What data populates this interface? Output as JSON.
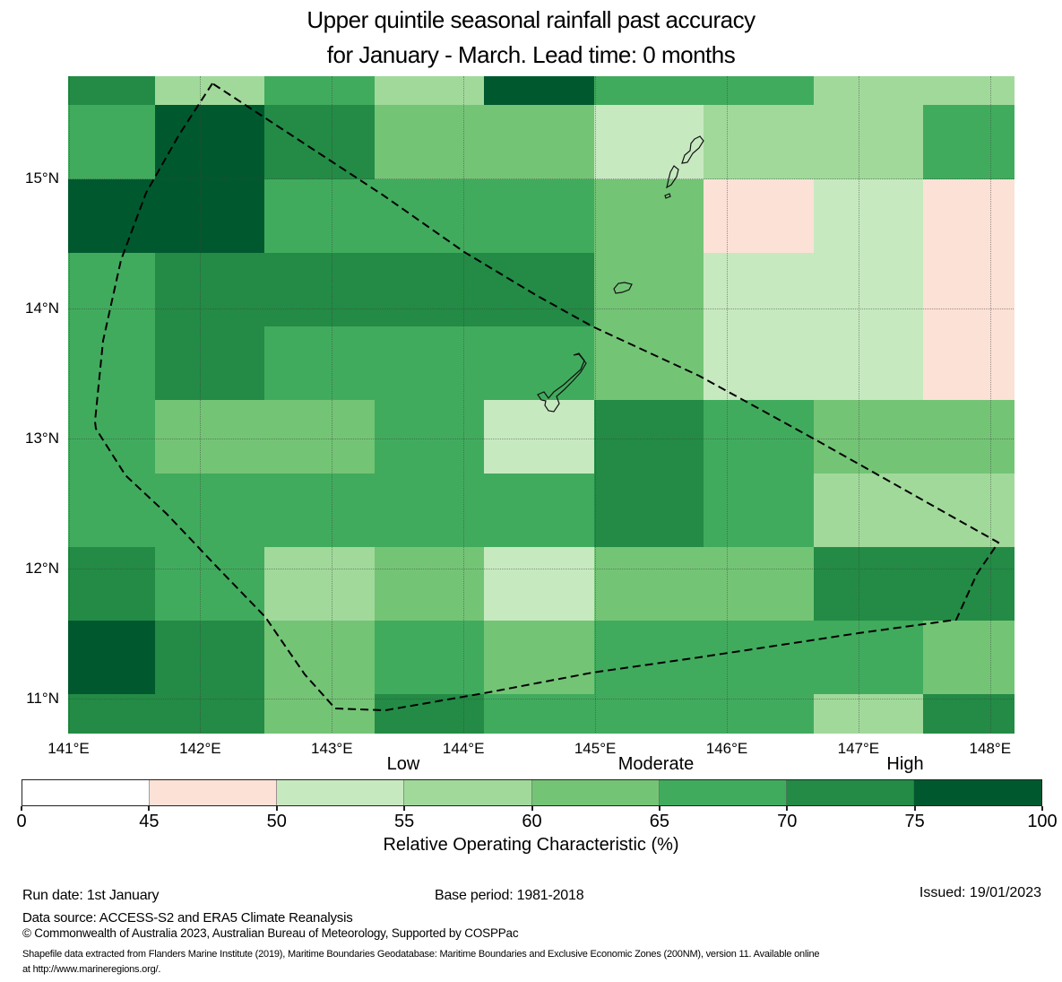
{
  "title": {
    "line1": "Upper quintile seasonal rainfall past accuracy",
    "line2": "for January - March. Lead time: 0 months"
  },
  "axes": {
    "x_ticks": [
      "141°E",
      "142°E",
      "143°E",
      "144°E",
      "145°E",
      "146°E",
      "147°E",
      "148°E"
    ],
    "y_ticks": [
      "15°N",
      "14°N",
      "13°N",
      "12°N",
      "11°N"
    ]
  },
  "legend": {
    "categories": [
      "Low",
      "Moderate",
      "High"
    ],
    "tick_labels": [
      "0",
      "45",
      "50",
      "55",
      "60",
      "65",
      "70",
      "75",
      "100"
    ],
    "caption": "Relative Operating Characteristic (%)",
    "bins": [
      {
        "range": "0-45",
        "color": "#ffffff"
      },
      {
        "range": "45-50",
        "color": "#fbe1d6"
      },
      {
        "range": "50-55",
        "color": "#c7e9c0"
      },
      {
        "range": "55-60",
        "color": "#a1d99b"
      },
      {
        "range": "60-65",
        "color": "#74c476"
      },
      {
        "range": "65-70",
        "color": "#41ab5d"
      },
      {
        "range": "70-75",
        "color": "#238b45"
      },
      {
        "range": "75-100",
        "color": "#00592e"
      }
    ]
  },
  "footer": {
    "run_date": "Run date: 1st January",
    "base_period": "Base period: 1981-2018",
    "issued": "Issued: 19/01/2023",
    "data_source": "Data source: ACCESS-S2 and ERA5 Climate Reanalysis",
    "copyright": "© Commonwealth of Australia 2023, Australian Bureau of Meteorology, Supported by COSPPac",
    "shapefile_line1": "Shapefile data extracted from Flanders Marine Institute (2019), Maritime Boundaries Geodatabase: Maritime Boundaries and Exclusive Economic Zones (200NM), version 11. Available online",
    "shapefile_line2": "at http://www.marineregions.org/."
  },
  "chart_data": {
    "type": "heatmap",
    "title": "Upper quintile seasonal rainfall past accuracy for January - March. Lead time: 0 months",
    "value_label": "Relative Operating Characteristic (%)",
    "value_bins": [
      "0-45",
      "45-50",
      "50-55",
      "55-60",
      "60-65",
      "65-70",
      "70-75",
      "75-100"
    ],
    "bin_category_labels": {
      "Low": "50-60",
      "Moderate": "60-70",
      "High": "70-100"
    },
    "lon_edges": [
      141.0,
      141.66,
      142.49,
      143.33,
      144.16,
      144.99,
      145.83,
      146.66,
      147.49,
      148.18
    ],
    "lat_edges": [
      15.79,
      15.57,
      15.0,
      14.43,
      13.86,
      13.3,
      12.73,
      12.16,
      11.6,
      11.03,
      10.74
    ],
    "grid_roc_percent": [
      [
        "70-75",
        "55-60",
        "65-70",
        "55-60",
        "75-100",
        "65-70",
        "65-70",
        "55-60",
        "55-60"
      ],
      [
        "65-70",
        "75-100",
        "70-75",
        "60-65",
        "60-65",
        "50-55",
        "55-60",
        "55-60",
        "65-70"
      ],
      [
        "75-100",
        "75-100",
        "65-70",
        "65-70",
        "65-70",
        "60-65",
        "45-50",
        "50-55",
        "45-50"
      ],
      [
        "65-70",
        "70-75",
        "70-75",
        "70-75",
        "70-75",
        "60-65",
        "50-55",
        "50-55",
        "45-50"
      ],
      [
        "65-70",
        "70-75",
        "65-70",
        "65-70",
        "65-70",
        "60-65",
        "50-55",
        "50-55",
        "45-50"
      ],
      [
        "65-70",
        "60-65",
        "60-65",
        "65-70",
        "50-55",
        "70-75",
        "65-70",
        "60-65",
        "60-65"
      ],
      [
        "65-70",
        "65-70",
        "65-70",
        "65-70",
        "65-70",
        "70-75",
        "65-70",
        "55-60",
        "55-60"
      ],
      [
        "70-75",
        "65-70",
        "55-60",
        "60-65",
        "50-55",
        "60-65",
        "60-65",
        "70-75",
        "70-75"
      ],
      [
        "75-100",
        "70-75",
        "60-65",
        "65-70",
        "60-65",
        "65-70",
        "65-70",
        "65-70",
        "60-65"
      ],
      [
        "70-75",
        "70-75",
        "60-65",
        "70-75",
        "65-70",
        "65-70",
        "65-70",
        "55-60",
        "70-75"
      ]
    ],
    "overlays": [
      "EEZ maritime boundary (dashed)",
      "island coastlines: Saipan, Tinian, Aguijan, Rota, Guam"
    ],
    "grid_on": true,
    "legend_position": "bottom horizontal colorbar"
  }
}
